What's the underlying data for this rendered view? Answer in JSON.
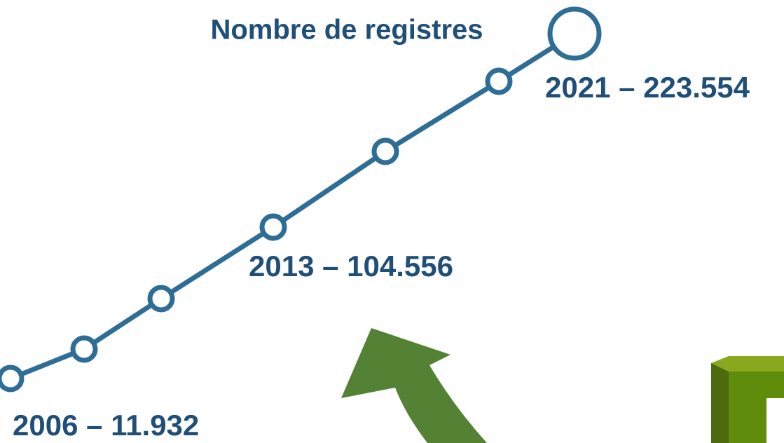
{
  "title": "Nombre de registres",
  "labels": [
    "2021 – 223.554",
    "2013 – 104.556",
    "2006 – 11.932"
  ]
}
